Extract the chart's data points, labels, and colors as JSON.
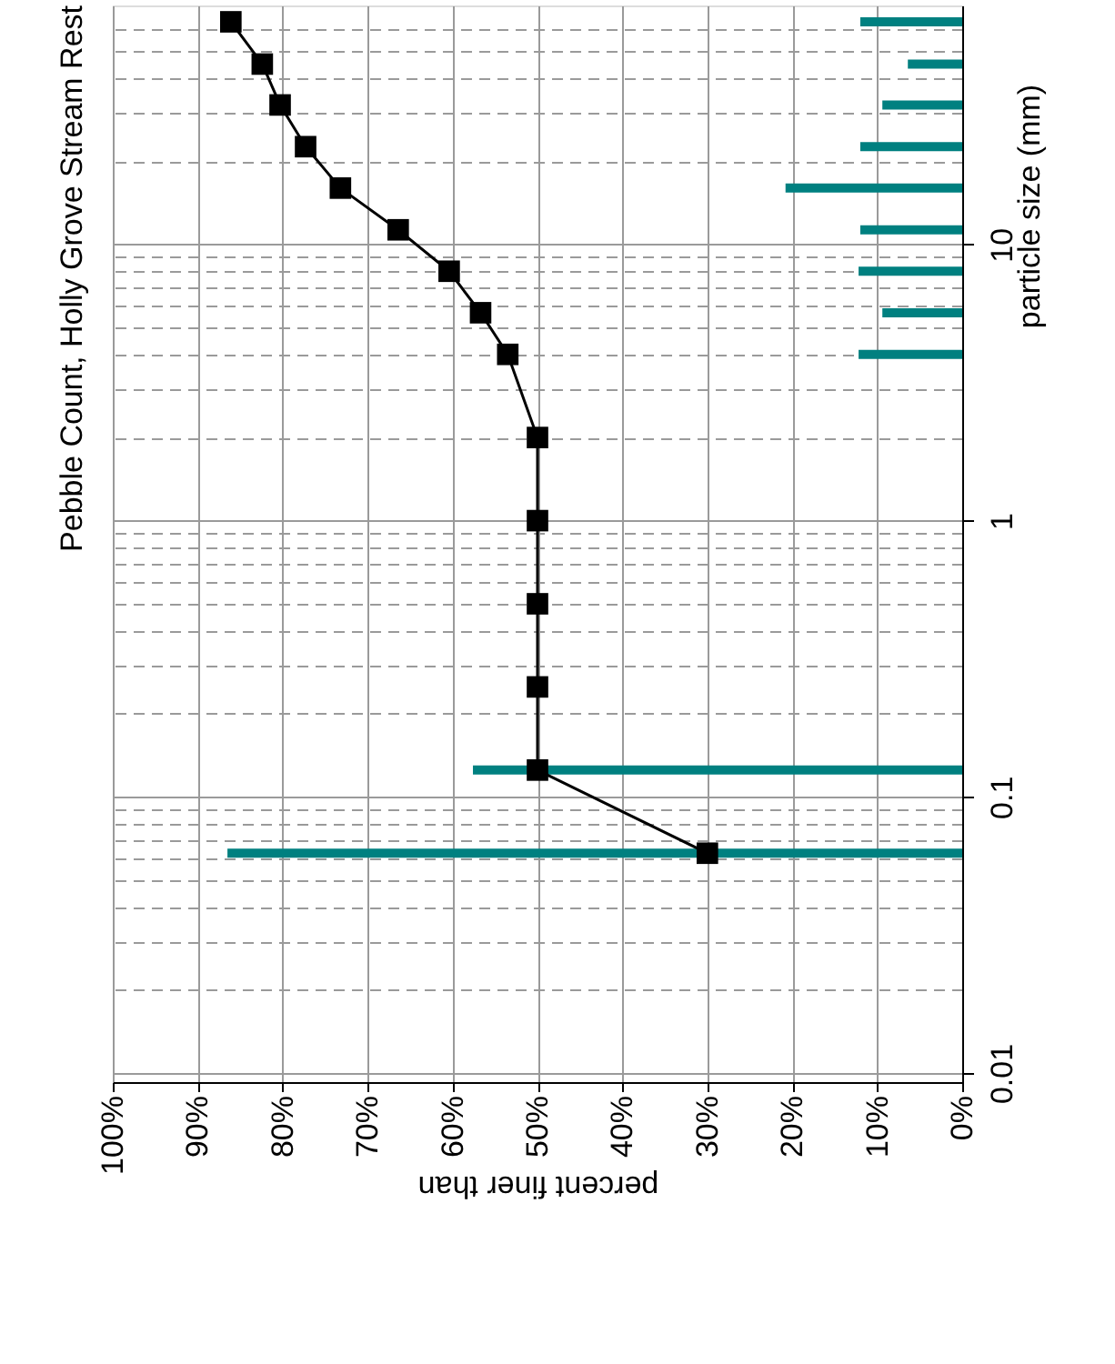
{
  "chart_data": {
    "type": "line",
    "title": "Pebble Count,  Holly Grove Stream Rest",
    "xlabel": "percent finer than",
    "ylabel": "particle size (mm)",
    "orientation": "horizontal",
    "x": [
      0.0625,
      0.125,
      0.25,
      0.5,
      1,
      2,
      4,
      5.66,
      8,
      11.3,
      16,
      22.6,
      32,
      45,
      64
    ],
    "series": [
      {
        "type": "bar",
        "color": "#008080",
        "x": [
          0.0625,
          0.125,
          4,
          5.66,
          8,
          11.3,
          16,
          22.6,
          32,
          45,
          64
        ],
        "values": [
          86.5,
          57.6,
          12.2,
          9.4,
          12.2,
          12,
          20.8,
          12,
          9.4,
          6.4,
          12
        ]
      },
      {
        "color": "#000000",
        "marker": "square",
        "values": [
          30,
          50,
          50,
          50,
          50,
          50,
          53.5,
          56.7,
          60.4,
          66.4,
          73.2,
          77.3,
          80.3,
          82.4,
          86.1
        ]
      }
    ],
    "xlim": [
      100,
      0
    ],
    "xticks": [
      {
        "value": 100,
        "label": "100%"
      },
      {
        "value": 90,
        "label": "90%"
      },
      {
        "value": 80,
        "label": "80%"
      },
      {
        "value": 70,
        "label": "70%"
      },
      {
        "value": 60,
        "label": "60%"
      },
      {
        "value": 50,
        "label": "50%"
      },
      {
        "value": 40,
        "label": "40%"
      },
      {
        "value": 30,
        "label": "30%"
      },
      {
        "value": 20,
        "label": "20%"
      },
      {
        "value": 10,
        "label": "10%"
      },
      {
        "value": 0,
        "label": "0%"
      }
    ],
    "ylim": [
      0.01,
      68
    ],
    "log": "y",
    "yticks": [
      0.01,
      {
        "value": 0.02,
        "label": null
      },
      {
        "value": 0.03,
        "label": null
      },
      {
        "value": 0.04,
        "label": null
      },
      {
        "value": 0.05,
        "label": null
      },
      {
        "value": 0.06,
        "label": null
      },
      {
        "value": 0.07,
        "label": null
      },
      {
        "value": 0.08,
        "label": null
      },
      {
        "value": 0.09,
        "label": null
      },
      0.1,
      {
        "value": 0.2,
        "label": null
      },
      {
        "value": 0.3,
        "label": null
      },
      {
        "value": 0.4,
        "label": null
      },
      {
        "value": 0.5,
        "label": null
      },
      {
        "value": 0.6,
        "label": null
      },
      {
        "value": 0.7,
        "label": null
      },
      {
        "value": 0.8,
        "label": null
      },
      {
        "value": 0.9,
        "label": null
      },
      1,
      {
        "value": 2,
        "label": null
      },
      {
        "value": 3,
        "label": null
      },
      {
        "value": 4,
        "label": null
      },
      {
        "value": 5,
        "label": null
      },
      {
        "value": 6,
        "label": null
      },
      {
        "value": 7,
        "label": null
      },
      {
        "value": 8,
        "label": null
      },
      {
        "value": 9,
        "label": null
      },
      10,
      {
        "value": 20,
        "label": null
      },
      {
        "value": 30,
        "label": null
      },
      {
        "value": 40,
        "label": null
      },
      {
        "value": 50,
        "label": null
      },
      {
        "value": 60,
        "label": null
      }
    ],
    "grid": true
  }
}
